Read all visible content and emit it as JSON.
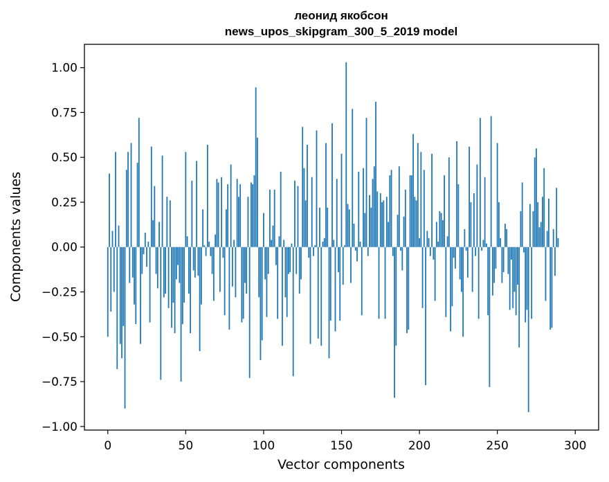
{
  "chart_data": {
    "type": "bar",
    "title": "леонид якобсон",
    "subtitle": "news_upos_skipgram_300_5_2019 model",
    "xlabel": "Vector components",
    "ylabel": "Components values",
    "xlim": [
      -15,
      315
    ],
    "ylim": [
      -1.02,
      1.13
    ],
    "xticks": [
      0,
      50,
      100,
      150,
      200,
      250,
      300
    ],
    "yticks": [
      -1.0,
      -0.75,
      -0.5,
      -0.25,
      0.0,
      0.25,
      0.5,
      0.75,
      1.0
    ],
    "ytick_labels": [
      "−1.00",
      "−0.75",
      "−0.50",
      "−0.25",
      "0.00",
      "0.25",
      "0.50",
      "0.75",
      "1.00"
    ],
    "bar_color": "#1f77b4",
    "values": [
      -0.5,
      0.41,
      -0.36,
      0.09,
      -0.25,
      0.53,
      -0.68,
      0.12,
      -0.54,
      -0.62,
      -0.44,
      -0.9,
      0.43,
      0.53,
      -0.2,
      0.58,
      -0.17,
      -0.32,
      -0.43,
      0.47,
      0.72,
      -0.54,
      -0.15,
      -0.04,
      0.08,
      -0.11,
      0.03,
      -0.42,
      0.56,
      0.15,
      0.34,
      -0.15,
      -0.23,
      0.14,
      -0.74,
      0.51,
      -0.28,
      -0.26,
      0.28,
      -0.34,
      0.26,
      -0.45,
      -0.31,
      -0.48,
      -0.18,
      -0.1,
      -0.2,
      -0.75,
      -0.43,
      -0.31,
      0.53,
      0.06,
      -0.26,
      -0.48,
      0.37,
      -0.13,
      -0.17,
      0.48,
      -0.16,
      -0.58,
      -0.32,
      0.21,
      0.01,
      -0.05,
      0.57,
      0.03,
      -0.05,
      -0.15,
      -0.3,
      0.07,
      0.38,
      0.36,
      -0.25,
      0.39,
      -0.06,
      -0.38,
      0.21,
      0.35,
      -0.46,
      0.46,
      -0.22,
      0.04,
      -0.28,
      0.38,
      0.28,
      0.35,
      -0.42,
      -0.4,
      -0.2,
      -0.26,
      0.28,
      -0.73,
      0.36,
      0.35,
      0.4,
      0.89,
      0.61,
      -0.28,
      -0.63,
      -0.52,
      0.19,
      -0.18,
      -0.39,
      -0.15,
      0.32,
      0.04,
      0.12,
      0.32,
      -0.1,
      -0.4,
      0.06,
      0.42,
      -0.55,
      0.04,
      -0.28,
      -0.39,
      -0.15,
      -0.14,
      0.02,
      -0.72,
      0.37,
      -0.15,
      0.34,
      -0.26,
      -0.18,
      0.67,
      0.44,
      0.26,
      0.57,
      -0.06,
      -0.54,
      0.39,
      -0.05,
      0.01,
      0.65,
      -0.51,
      0.22,
      -0.55,
      0.03,
      0.05,
      0.58,
      0.22,
      -0.62,
      -0.41,
      0.69,
      0.04,
      -0.47,
      0.38,
      -0.14,
      -0.41,
      0.52,
      -0.21,
      0.01,
      1.03,
      0.24,
      0.21,
      -0.2,
      0.77,
      0.13,
      -0.02,
      -0.08,
      0.42,
      0.03,
      -0.38,
      0.44,
      0.19,
      0.72,
      -0.05,
      0.29,
      0.22,
      0.38,
      0.45,
      0.81,
      0.31,
      -0.4,
      0.3,
      0.25,
      0.26,
      -0.4,
      0.28,
      0.14,
      0.4,
      0.43,
      -0.05,
      -0.84,
      -0.55,
      0.18,
      0.45,
      -0.02,
      -0.13,
      0.17,
      0.32,
      -0.48,
      -0.46,
      0.4,
      0.4,
      0.63,
      0.28,
      0.26,
      0.58,
      0.05,
      0.53,
      -0.34,
      0.43,
      -0.77,
      0.09,
      0.05,
      -0.05,
      0.52,
      -0.07,
      -0.3,
      0.14,
      0.03,
      0.2,
      0.19,
      0.15,
      0.4,
      -0.39,
      0.06,
      0.5,
      -0.47,
      -0.33,
      -0.06,
      -0.12,
      0.59,
      0.35,
      -0.18,
      -0.25,
      -0.5,
      0.1,
      -0.02,
      -0.17,
      0.56,
      0.25,
      -0.25,
      0.3,
      -0.05,
      0.46,
      -0.4,
      0.72,
      -0.02,
      0.04,
      0.39,
      0.02,
      -0.38,
      -0.78,
      0.73,
      -0.27,
      -0.2,
      -0.12,
      0.58,
      0.25,
      0.05,
      -0.2,
      -0.14,
      0.13,
      0.1,
      -0.15,
      -0.35,
      -0.07,
      -0.34,
      -0.25,
      -0.38,
      -0.21,
      -0.56,
      0.2,
      0.36,
      -0.03,
      -0.42,
      -0.35,
      -0.92,
      0.24,
      -0.4,
      0.2,
      0.5,
      0.55,
      0.25,
      0.11,
      0.14,
      0.28,
      0.44,
      -0.3,
      0.09,
      0.27,
      -0.46,
      -0.45,
      0.1,
      -0.16,
      0.33,
      0.05
    ]
  }
}
